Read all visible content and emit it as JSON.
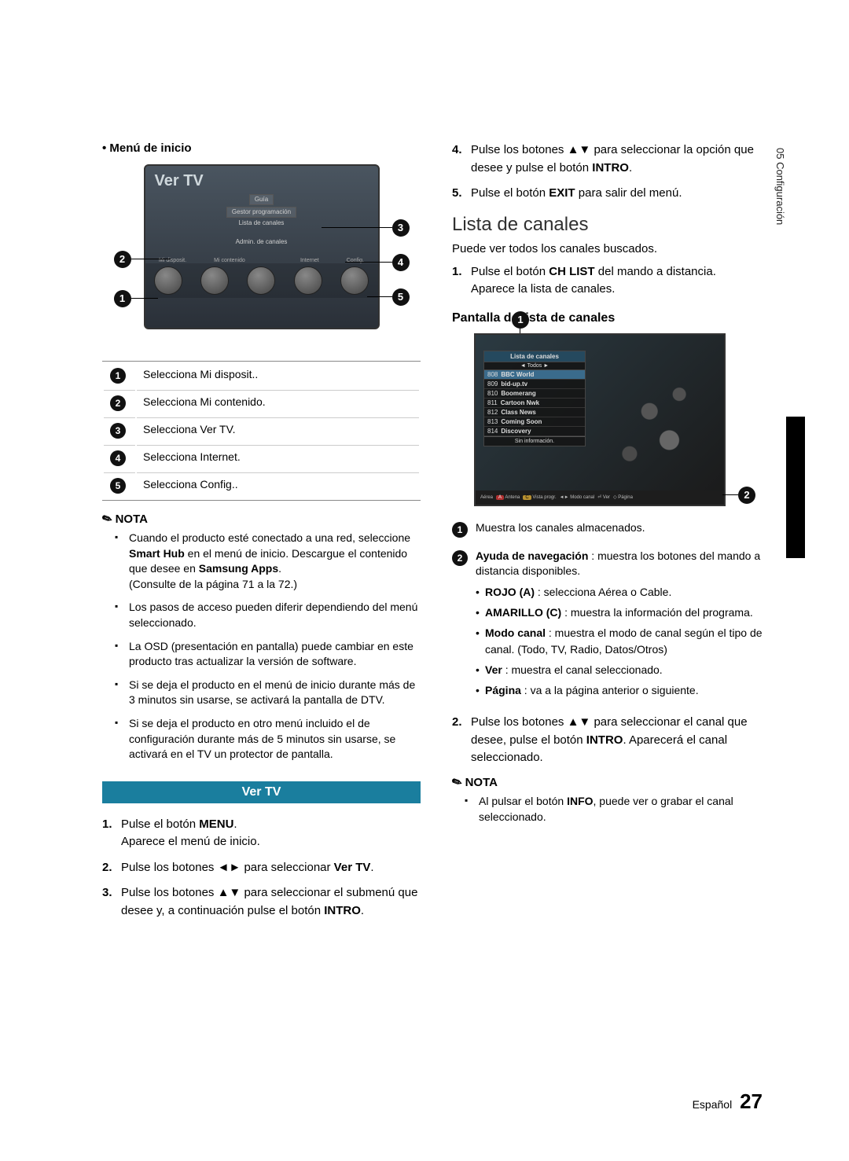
{
  "side_tab": "05  Configuración",
  "col1": {
    "menu_heading": "Menú de inicio",
    "ver_tv_title": "Ver TV",
    "ver_tv_menu": [
      "Guía",
      "Gestor programación",
      "Lista de canales",
      "Admin. de canales"
    ],
    "shelf_labels": [
      "Mi disposit.",
      "Mi contenido",
      "Internet",
      "Config."
    ],
    "legend": [
      {
        "n": "1",
        "t": "Selecciona Mi disposit.."
      },
      {
        "n": "2",
        "t": "Selecciona Mi contenido."
      },
      {
        "n": "3",
        "t": "Selecciona Ver TV."
      },
      {
        "n": "4",
        "t": "Selecciona Internet."
      },
      {
        "n": "5",
        "t": "Selecciona Config.."
      }
    ],
    "nota_label": "NOTA",
    "nota_items_html": [
      "Cuando el producto esté conectado a una red, seleccione <b>Smart Hub</b> en el menú de inicio. Descargue el contenido que desee en <b>Samsung Apps</b>.<br>(Consulte de la página 71 a la 72.)",
      "Los pasos de acceso pueden diferir dependiendo del menú seleccionado.",
      "La OSD (presentación en pantalla) puede cambiar en este producto tras actualizar la versión de software.",
      "Si se deja el producto en el menú de inicio durante más de 3 minutos sin usarse, se activará la pantalla de DTV.",
      "Si se deja el producto en otro menú incluido el de configuración durante más de 5 minutos sin usarse, se activará en el TV un protector de pantalla."
    ],
    "section_bar": "Ver TV",
    "steps_1to3_html": [
      "Pulse el botón <b>MENU</b>.<br>Aparece el menú de inicio.",
      "Pulse los botones ◄► para seleccionar <b>Ver TV</b>.",
      "Pulse los botones ▲▼ para seleccionar el submenú que desee y, a continuación pulse el botón <b>INTRO</b>."
    ]
  },
  "col2": {
    "steps_4to5_html": [
      "Pulse los botones ▲▼ para seleccionar la opción que desee y pulse el botón <b>INTRO</b>.",
      "Pulse el botón <b>EXIT</b> para salir del menú."
    ],
    "h2": "Lista de canales",
    "intro": "Puede ver todos los canales buscados.",
    "step1_html": "Pulse el botón <b>CH LIST</b> del mando a distancia.<br>Aparece la lista de canales.",
    "h3": "Pantalla de lista de canales",
    "chlist_header": "Lista de canales",
    "chlist_sub": "◄    Todos    ►",
    "channels": [
      {
        "num": "808",
        "name": "BBC World"
      },
      {
        "num": "809",
        "name": "bid-up.tv"
      },
      {
        "num": "810",
        "name": "Boomerang"
      },
      {
        "num": "811",
        "name": "Cartoon Nwk"
      },
      {
        "num": "812",
        "name": "Class News"
      },
      {
        "num": "813",
        "name": "Coming Soon"
      },
      {
        "num": "814",
        "name": "Discovery"
      }
    ],
    "chlist_noinfo": "Sin información.",
    "chlist_bottom_items": [
      "Aérea",
      "A Antena",
      "C Vista progr.",
      "◄► Modo canal",
      "⏎ Ver",
      "◇ Página"
    ],
    "legend1": "Muestra los canales almacenados.",
    "legend2_intro_html": "<b>Ayuda de navegación</b> : muestra los botones del mando a distancia disponibles.",
    "legend2_bullets_html": [
      "<b>ROJO (A)</b> : selecciona Aérea o Cable.",
      "<b>AMARILLO (C)</b> : muestra la información del programa.",
      "<b>Modo canal</b> : muestra el modo de canal según el tipo de canal. (Todo, TV, Radio, Datos/Otros)",
      "<b>Ver</b> : muestra el canal seleccionado.",
      "<b>Página</b> : va a la página anterior o siguiente."
    ],
    "step2_html": "Pulse los botones ▲▼ para seleccionar el canal que desee, pulse el botón <b>INTRO</b>. Aparecerá el canal seleccionado.",
    "nota_label": "NOTA",
    "nota2_html": "Al pulsar el botón <b>INFO</b>, puede ver o grabar el canal seleccionado."
  },
  "footer_lang": "Español",
  "footer_page": "27"
}
